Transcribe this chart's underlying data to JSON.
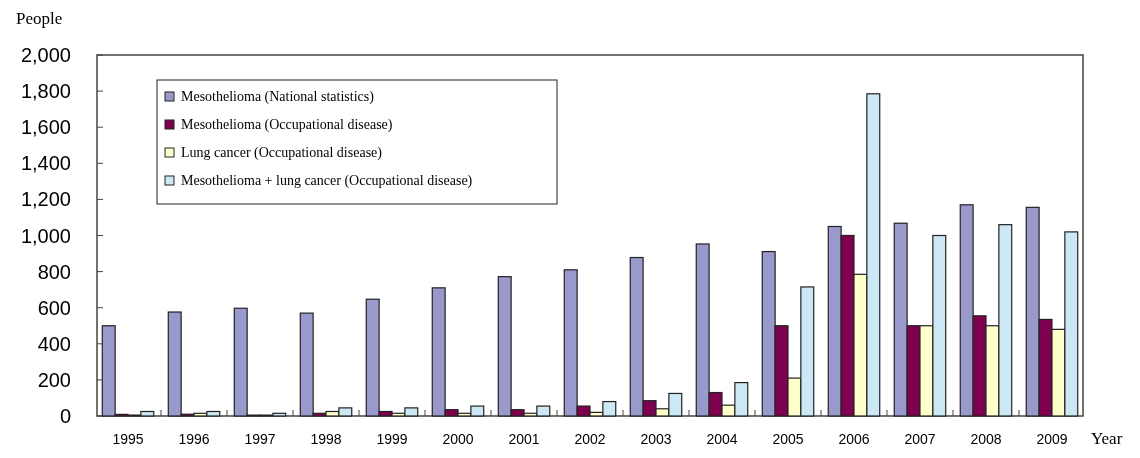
{
  "chart_data": {
    "type": "bar",
    "xlabel": "Year",
    "ylabel": "People",
    "categories": [
      "1995",
      "1996",
      "1997",
      "1998",
      "1999",
      "2000",
      "2001",
      "2002",
      "2003",
      "2004",
      "2005",
      "2006",
      "2007",
      "2008",
      "2009"
    ],
    "series": [
      {
        "name": "Mesothelioma (National statistics)",
        "color": "#9999cc",
        "values": [
          500,
          576,
          597,
          570,
          647,
          710,
          772,
          810,
          878,
          953,
          911,
          1050,
          1068,
          1170,
          1156
        ]
      },
      {
        "name": "Mesothelioma (Occupational disease)",
        "color": "#800050",
        "values": [
          9,
          10,
          5,
          15,
          25,
          35,
          35,
          55,
          85,
          130,
          500,
          1000,
          500,
          555,
          535
        ]
      },
      {
        "name": "Lung cancer (Occupational disease)",
        "color": "#ffffcc",
        "values": [
          5,
          15,
          5,
          25,
          15,
          15,
          15,
          20,
          40,
          60,
          210,
          785,
          500,
          500,
          480
        ]
      },
      {
        "name": "Mesothelioma + lung cancer (Occupational disease)",
        "color": "#cce8f4",
        "values": [
          25,
          25,
          15,
          45,
          45,
          55,
          55,
          80,
          125,
          185,
          715,
          1785,
          1000,
          1060,
          1020
        ]
      }
    ],
    "ylim": [
      0,
      2000
    ],
    "yticks": [
      {
        "value": 0,
        "label": "0"
      },
      {
        "value": 200,
        "label": "200"
      },
      {
        "value": 400,
        "label": "400"
      },
      {
        "value": 600,
        "label": "600"
      },
      {
        "value": 800,
        "label": "800"
      },
      {
        "value": 1000,
        "label": "1,000"
      },
      {
        "value": 1200,
        "label": "1,200"
      },
      {
        "value": 1400,
        "label": "1,400"
      },
      {
        "value": 1600,
        "label": "1,600"
      },
      {
        "value": 1800,
        "label": "1,800"
      },
      {
        "value": 2000,
        "label": "2,000"
      }
    ],
    "grid": false,
    "legend": "top left"
  }
}
